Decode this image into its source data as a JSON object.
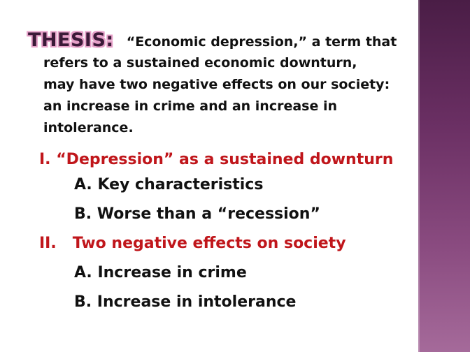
{
  "slide": {
    "thesis_label": "THESIS:",
    "thesis_first_line": "“Economic depression,” a term that",
    "thesis_lines": [
      "refers to a sustained economic downturn,",
      "may have two negative effects on our society:",
      "an increase in crime and an increase in",
      "intolerance."
    ],
    "outline": {
      "section1": {
        "numeral": "I.",
        "title": "“Depression” as a sustained downturn",
        "items": [
          "A.  Key characteristics",
          "B.   Worse than a “recession”"
        ]
      },
      "section2": {
        "numeral": "II.",
        "title": "Two negative effects on society",
        "items": [
          "A.  Increase in crime",
          "B.  Increase in intolerance"
        ]
      }
    }
  },
  "colors": {
    "heading_red": "#c0161b",
    "body_text": "#111111",
    "label_outline_pink": "#e6a0c8",
    "side_bar_purple": "#6a2f63"
  }
}
